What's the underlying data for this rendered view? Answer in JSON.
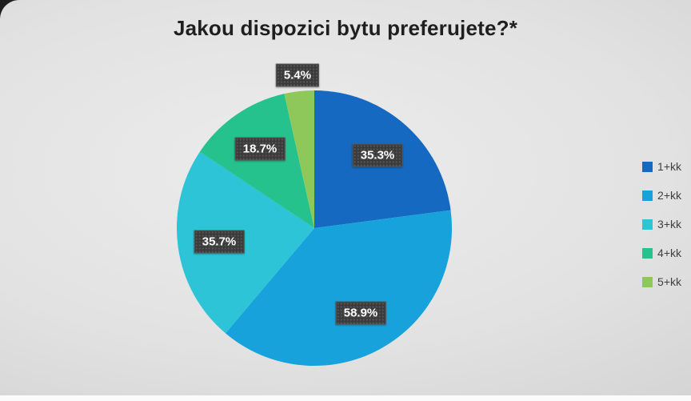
{
  "title": "Jakou dispozici bytu preferujete?*",
  "chart_data": {
    "type": "pie",
    "title": "Jakou dispozici bytu preferujete?*",
    "legend_position": "right",
    "start_angle_deg": 0,
    "direction": "clockwise",
    "values_sum": 154.0,
    "slices": [
      {
        "label": "1+kk",
        "value": 35.3,
        "display": "35.3%",
        "color": "#1569c0"
      },
      {
        "label": "2+kk",
        "value": 58.9,
        "display": "58.9%",
        "color": "#18a2dc"
      },
      {
        "label": "3+kk",
        "value": 35.7,
        "display": "35.7%",
        "color": "#2cc4d6"
      },
      {
        "label": "4+kk",
        "value": 18.7,
        "display": "18.7%",
        "color": "#25c28d"
      },
      {
        "label": "5+kk",
        "value": 5.4,
        "display": "5.4%",
        "color": "#8fc85a"
      }
    ]
  },
  "colors": {
    "background_light": "#ececec",
    "background_dark": "#c9c9c9",
    "label_box": "#3a3a3a",
    "label_text": "#ffffff",
    "title_text": "#1f1f1f",
    "legend_text": "#3f3f3f"
  }
}
